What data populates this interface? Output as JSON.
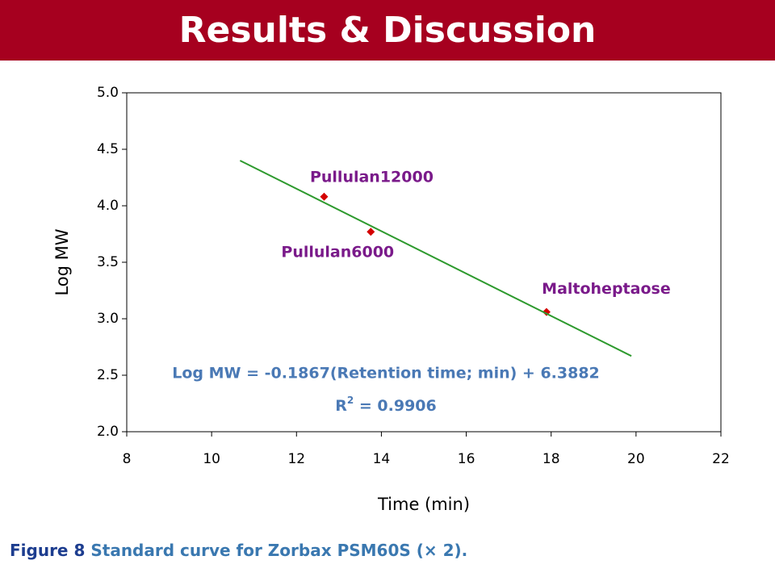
{
  "header": {
    "title": "Results & Discussion"
  },
  "caption": {
    "label": "Figure 8",
    "text": "Standard curve for Zorbax PSM60S (× 2)."
  },
  "chart_data": {
    "type": "scatter",
    "x_label": "Time (min)",
    "y_label": "Log MW",
    "xlim": [
      8,
      22
    ],
    "xticks": [
      8,
      10,
      12,
      14,
      16,
      18,
      20,
      22
    ],
    "ylim": [
      2,
      5
    ],
    "yticks": [
      {
        "value": 2,
        "label": "2.0"
      },
      {
        "value": 2.5,
        "label": "2.5"
      },
      {
        "value": 3,
        "label": "3.0"
      },
      {
        "value": 3.5,
        "label": "3.5"
      },
      {
        "value": 4,
        "label": "4.0"
      },
      {
        "value": 4.5,
        "label": "4.5"
      },
      {
        "value": 5,
        "label": "5.0"
      }
    ],
    "series": [
      {
        "type": "scatter",
        "color": "#d40000",
        "x": [
          12.65,
          13.75,
          17.89
        ],
        "values": [
          4.08,
          3.77,
          3.06
        ],
        "point_labels": [
          "Pullulan12000",
          "Pullulan6000",
          "Maltoheptaose"
        ],
        "label_color": "#7a1a8a"
      },
      {
        "type": "line",
        "color": "#2e9a2e",
        "x": [
          10.67,
          19.89
        ],
        "values": [
          4.4,
          2.67
        ]
      }
    ],
    "annotations": [
      {
        "text": "Log MW = -0.1867(Retention time; min) + 6.3882"
      },
      {
        "base": "R",
        "sup": "2",
        "text": " = 0.9906"
      }
    ],
    "annotation_color": "#4a79b5"
  }
}
